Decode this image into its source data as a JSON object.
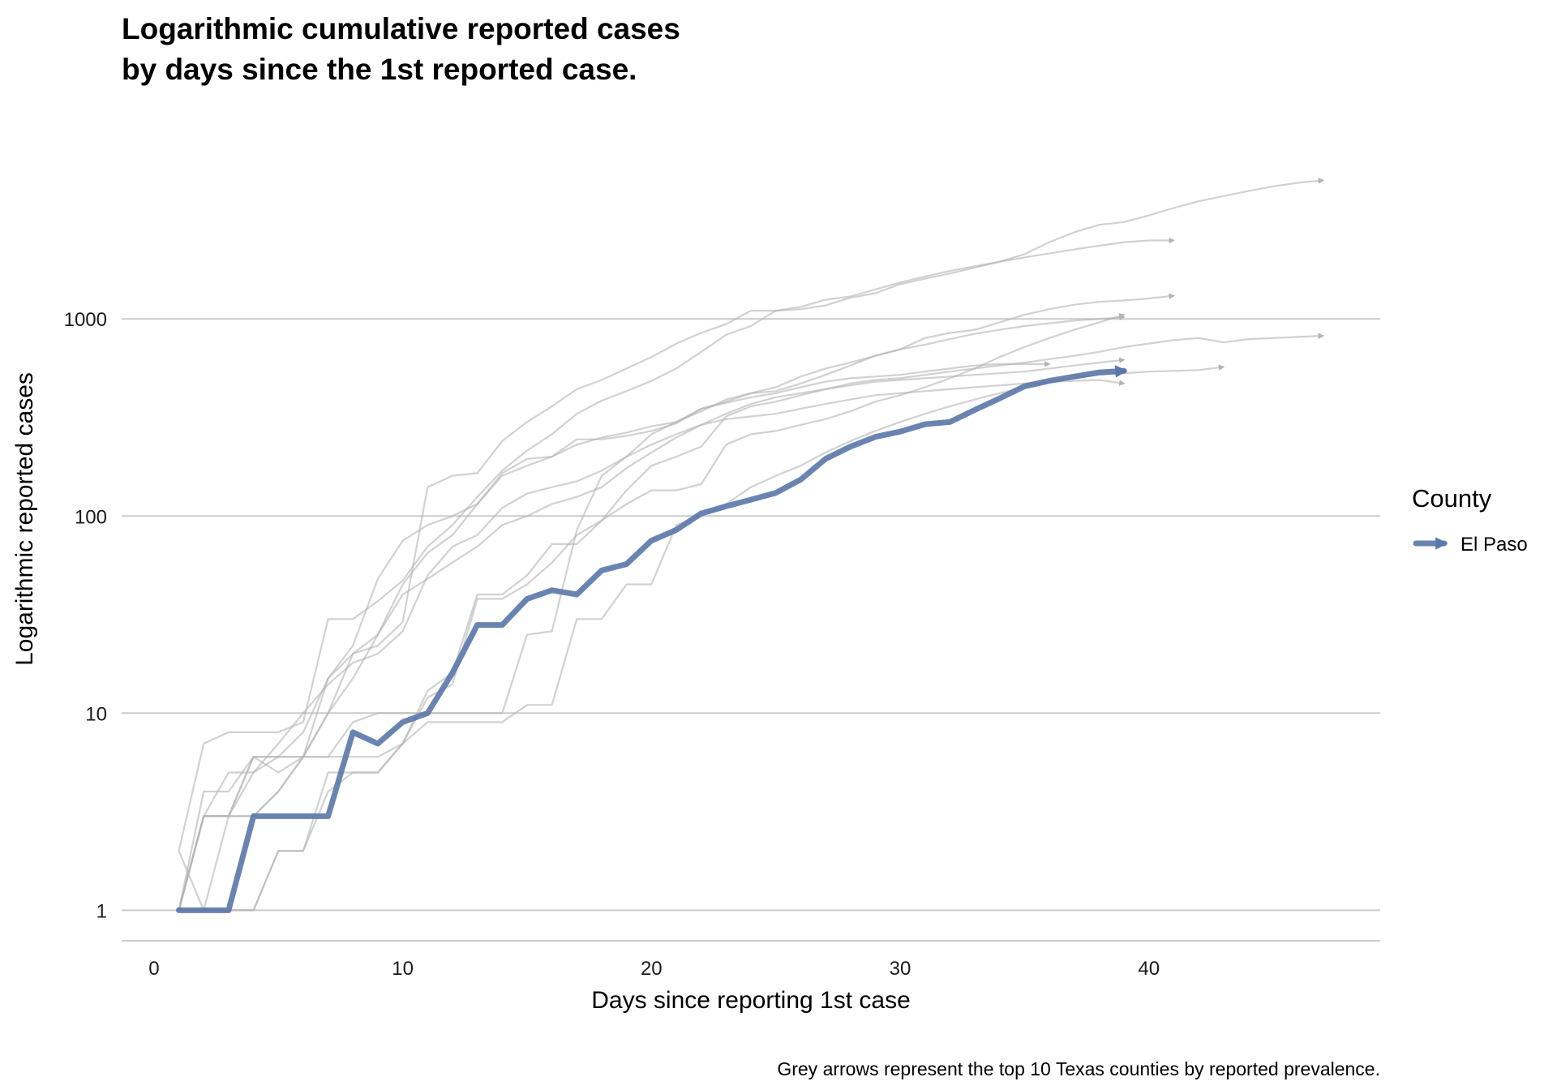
{
  "chart_data": {
    "type": "line",
    "title_lines": [
      "Logarithmic cumulative reported cases",
      "by days since the 1st reported case."
    ],
    "xlabel": "Days since reporting 1st case",
    "ylabel": "Logarithmic reported cases",
    "caption": "Grey arrows represent the top 10 Texas counties by reported prevalence.",
    "x_scale": "linear",
    "y_scale": "log10",
    "xlim": [
      -1.3,
      49.3
    ],
    "ylim": [
      0.7,
      10500
    ],
    "x_ticks": [
      0,
      10,
      20,
      30,
      40
    ],
    "y_ticks": [
      1,
      10,
      100,
      1000
    ],
    "y_tick_labels": [
      "1",
      "10",
      "100",
      "1000"
    ],
    "grid": "horizontal major gridlines",
    "legend": {
      "title": "County",
      "position": "right",
      "entries": [
        "El Paso"
      ]
    },
    "colors": {
      "highlight": "#5a77a9",
      "background_lines": "#b3b3b3",
      "grid": "#cccccc"
    },
    "series": [
      {
        "name": "El Paso",
        "highlight": true,
        "x": [
          1,
          2,
          3,
          4,
          5,
          6,
          7,
          8,
          9,
          10,
          11,
          12,
          13,
          14,
          15,
          16,
          17,
          18,
          19,
          20,
          21,
          22,
          23,
          24,
          25,
          26,
          27,
          28,
          29,
          30,
          31,
          32,
          33,
          34,
          35,
          36,
          37,
          38,
          39
        ],
        "y": [
          1,
          1,
          1,
          3,
          3,
          3,
          3,
          8,
          7,
          9,
          10,
          16,
          28,
          28,
          38,
          42,
          40,
          53,
          57,
          75,
          85,
          103,
          112,
          121,
          131,
          153,
          195,
          225,
          252,
          268,
          292,
          300,
          345,
          395,
          455,
          485,
          510,
          535,
          545
        ]
      },
      {
        "highlight": false,
        "x": [
          1,
          2,
          3,
          4,
          5,
          6,
          7,
          8,
          9,
          10,
          11,
          12,
          13,
          14,
          15,
          16,
          17,
          18,
          19,
          20,
          21,
          22,
          23,
          24,
          25,
          26,
          27,
          28,
          29,
          30,
          31,
          32,
          33,
          34,
          35,
          36,
          37,
          38,
          39,
          40,
          41,
          42,
          43,
          44,
          45,
          46,
          47
        ],
        "y": [
          2,
          7,
          8,
          8,
          8,
          9,
          30,
          30,
          37,
          47,
          70,
          90,
          125,
          170,
          215,
          260,
          330,
          385,
          430,
          485,
          560,
          680,
          830,
          920,
          1100,
          1120,
          1170,
          1280,
          1350,
          1500,
          1600,
          1700,
          1820,
          1950,
          2130,
          2450,
          2750,
          3000,
          3100,
          3350,
          3650,
          3950,
          4200,
          4450,
          4700,
          4900,
          5050
        ]
      },
      {
        "highlight": false,
        "x": [
          1,
          2,
          3,
          4,
          5,
          6,
          7,
          8,
          9,
          10,
          11,
          12,
          13,
          14,
          15,
          16,
          17,
          18,
          19,
          20,
          21,
          22,
          23,
          24,
          25,
          26,
          27,
          28,
          29,
          30,
          31,
          32,
          33,
          34,
          35,
          36,
          37,
          38,
          39,
          40,
          41
        ],
        "y": [
          1,
          3,
          3,
          3,
          4,
          6,
          15,
          20,
          22,
          29,
          140,
          160,
          165,
          240,
          300,
          360,
          440,
          490,
          560,
          640,
          750,
          850,
          940,
          1100,
          1100,
          1150,
          1250,
          1300,
          1410,
          1530,
          1640,
          1750,
          1850,
          1950,
          2050,
          2150,
          2250,
          2350,
          2450,
          2500,
          2500
        ]
      },
      {
        "highlight": false,
        "x": [
          1,
          2,
          3,
          4,
          5,
          6,
          7,
          8,
          9,
          10,
          11,
          12,
          13,
          14,
          15,
          16,
          17,
          18,
          19,
          20,
          21,
          22,
          23,
          24,
          25,
          26,
          27,
          28,
          29,
          30,
          31,
          32,
          33,
          34,
          35,
          36,
          37,
          38,
          39,
          40,
          41
        ],
        "y": [
          1,
          4,
          4,
          6,
          6,
          6,
          10,
          15,
          25,
          45,
          65,
          80,
          115,
          165,
          195,
          200,
          245,
          245,
          255,
          270,
          295,
          350,
          380,
          420,
          430,
          470,
          520,
          580,
          650,
          700,
          800,
          850,
          880,
          960,
          1050,
          1120,
          1180,
          1220,
          1240,
          1270,
          1310
        ]
      },
      {
        "highlight": false,
        "x": [
          1,
          2,
          3,
          4,
          5,
          6,
          7,
          8,
          9,
          10,
          11,
          12,
          13,
          14,
          15,
          16,
          17,
          18,
          19,
          20,
          21,
          22,
          23,
          24,
          25,
          26,
          27,
          28,
          29,
          30,
          31,
          32,
          33,
          34,
          35,
          36,
          37,
          38,
          39
        ],
        "y": [
          1,
          3,
          3,
          6,
          6,
          6,
          6,
          6,
          6,
          7,
          13,
          16,
          40,
          40,
          50,
          72,
          72,
          95,
          115,
          135,
          135,
          145,
          230,
          260,
          270,
          290,
          310,
          340,
          380,
          410,
          450,
          500,
          560,
          640,
          720,
          800,
          880,
          960,
          1050
        ]
      },
      {
        "highlight": false,
        "x": [
          1,
          2,
          3,
          4,
          5,
          6,
          7,
          8,
          9,
          10,
          11,
          12,
          13,
          14,
          15,
          16,
          17,
          18,
          19,
          20,
          21,
          22,
          23,
          24,
          25,
          26,
          27,
          28,
          29,
          30,
          31,
          32,
          33,
          34,
          35,
          36,
          37,
          38,
          39
        ],
        "y": [
          1,
          3,
          5,
          5,
          6,
          8,
          15,
          22,
          48,
          75,
          90,
          100,
          115,
          160,
          180,
          200,
          230,
          250,
          265,
          285,
          300,
          340,
          390,
          420,
          450,
          510,
          560,
          600,
          650,
          700,
          740,
          790,
          840,
          880,
          920,
          950,
          980,
          1000,
          1020
        ]
      },
      {
        "highlight": false,
        "x": [
          1,
          2,
          3,
          4,
          5,
          6,
          7,
          8,
          9,
          10,
          11,
          12,
          13,
          14,
          15,
          16,
          17,
          18,
          19,
          20,
          21,
          22,
          23,
          24,
          25,
          26,
          27,
          28,
          29,
          30,
          31,
          32,
          33,
          34,
          35,
          36
        ],
        "y": [
          1,
          3,
          3,
          6,
          5,
          6,
          6,
          9,
          10,
          10,
          10,
          10,
          10,
          10,
          25,
          26,
          85,
          160,
          200,
          260,
          300,
          350,
          375,
          400,
          420,
          450,
          480,
          500,
          510,
          520,
          540,
          560,
          580,
          590,
          590,
          590
        ]
      },
      {
        "highlight": false,
        "x": [
          1,
          2,
          3,
          4,
          5,
          6,
          7,
          8,
          9,
          10,
          11,
          12,
          13,
          14,
          15,
          16,
          17,
          18,
          19,
          20,
          21,
          22,
          23,
          24,
          25,
          26,
          27,
          28,
          29,
          30,
          31,
          32,
          33,
          34,
          35,
          36,
          37,
          38,
          39,
          40,
          41,
          42,
          43,
          44,
          45,
          46,
          47
        ],
        "y": [
          1,
          1,
          1,
          1,
          2,
          2,
          4,
          5,
          5,
          7,
          12,
          14,
          38,
          38,
          45,
          58,
          80,
          95,
          135,
          180,
          200,
          225,
          320,
          360,
          380,
          410,
          440,
          470,
          490,
          500,
          520,
          540,
          560,
          580,
          600,
          625,
          650,
          680,
          720,
          750,
          780,
          800,
          760,
          790,
          800,
          810,
          820
        ]
      },
      {
        "highlight": false,
        "x": [
          1,
          2,
          3,
          4,
          5,
          6,
          7,
          8,
          9,
          10,
          11,
          12,
          13,
          14,
          15,
          16,
          17,
          18,
          19,
          20,
          21,
          22,
          23,
          24,
          25,
          26,
          27,
          28,
          29,
          30,
          31,
          32,
          33,
          34,
          35,
          36,
          37,
          38,
          39,
          40,
          41,
          42,
          43
        ],
        "y": [
          1,
          1,
          1,
          1,
          2,
          2,
          5,
          5,
          5,
          7,
          9,
          9,
          9,
          9,
          11,
          11,
          30,
          30,
          45,
          45,
          90,
          100,
          115,
          140,
          160,
          180,
          210,
          240,
          270,
          300,
          330,
          360,
          390,
          420,
          450,
          480,
          500,
          520,
          530,
          540,
          545,
          550,
          570
        ]
      },
      {
        "highlight": false,
        "x": [
          1,
          2,
          3,
          4,
          5,
          6,
          7,
          8,
          9,
          10,
          11,
          12,
          13,
          14,
          15,
          16,
          17,
          18,
          19,
          20,
          21,
          22,
          23,
          24,
          25,
          26,
          27,
          28,
          29,
          30,
          31,
          32,
          33,
          34,
          35,
          36,
          37,
          38,
          39
        ],
        "y": [
          1,
          3,
          3,
          3,
          4,
          6,
          10,
          20,
          25,
          40,
          48,
          58,
          70,
          90,
          100,
          115,
          125,
          140,
          175,
          210,
          250,
          290,
          330,
          370,
          400,
          420,
          440,
          460,
          480,
          490,
          500,
          510,
          520,
          530,
          540,
          560,
          580,
          600,
          620
        ]
      },
      {
        "highlight": false,
        "x": [
          1,
          2,
          3,
          4,
          5,
          6,
          7,
          8,
          9,
          10,
          11,
          12,
          13,
          14,
          15,
          16,
          17,
          18,
          19,
          20,
          21,
          22,
          23,
          24,
          25,
          26,
          27,
          28,
          29,
          30,
          31,
          32,
          33,
          34,
          35,
          36,
          37,
          38,
          39
        ],
        "y": [
          2,
          1,
          3,
          5,
          7,
          10,
          14,
          18,
          20,
          26,
          50,
          70,
          80,
          110,
          130,
          140,
          150,
          170,
          200,
          230,
          260,
          290,
          310,
          320,
          330,
          350,
          370,
          390,
          410,
          420,
          430,
          440,
          450,
          460,
          470,
          480,
          485,
          490,
          470
        ]
      }
    ]
  }
}
